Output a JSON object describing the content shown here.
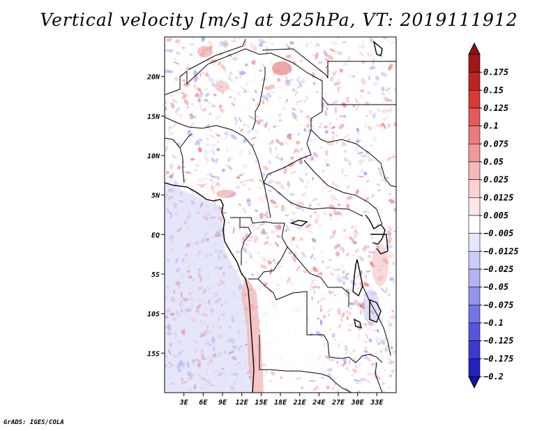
{
  "title": "Vertical velocity [m/s] at 925hPa, VT: 2019111912",
  "credit": "GrADS: IGES/COLA",
  "map": {
    "lon_range": [
      0,
      36
    ],
    "lat_range": [
      -20,
      25
    ],
    "lat_ticks": [
      {
        "value": 20,
        "label": "20N"
      },
      {
        "value": 15,
        "label": "15N"
      },
      {
        "value": 10,
        "label": "10N"
      },
      {
        "value": 5,
        "label": "5N"
      },
      {
        "value": 0,
        "label": "EQ"
      },
      {
        "value": -5,
        "label": "5S"
      },
      {
        "value": -10,
        "label": "10S"
      },
      {
        "value": -15,
        "label": "15S"
      }
    ],
    "lon_ticks": [
      {
        "value": 3,
        "label": "3E"
      },
      {
        "value": 6,
        "label": "6E"
      },
      {
        "value": 9,
        "label": "9E"
      },
      {
        "value": 12,
        "label": "12E"
      },
      {
        "value": 15,
        "label": "15E"
      },
      {
        "value": 18,
        "label": "18E"
      },
      {
        "value": 21,
        "label": "21E"
      },
      {
        "value": 24,
        "label": "24E"
      },
      {
        "value": 27,
        "label": "27E"
      },
      {
        "value": 30,
        "label": "30E"
      },
      {
        "value": 33,
        "label": "33E"
      }
    ]
  },
  "colorbar": {
    "levels": [
      {
        "label": "0.175",
        "color": "#a01818"
      },
      {
        "label": "0.15",
        "color": "#be2222"
      },
      {
        "label": "0.125",
        "color": "#d83838"
      },
      {
        "label": "0.1",
        "color": "#e45a5a"
      },
      {
        "label": "0.075",
        "color": "#ec7a7a"
      },
      {
        "label": "0.05",
        "color": "#f29898"
      },
      {
        "label": "0.025",
        "color": "#f7b8b8"
      },
      {
        "label": "0.0125",
        "color": "#fbd2d2"
      },
      {
        "label": "0.005",
        "color": "#fde8e8"
      },
      {
        "label": "−0.005",
        "color": "#ffffff"
      },
      {
        "label": "−0.0125",
        "color": "#e6e6fc"
      },
      {
        "label": "−0.025",
        "color": "#ccccf8"
      },
      {
        "label": "−0.05",
        "color": "#b2b2f4"
      },
      {
        "label": "−0.075",
        "color": "#9494ee"
      },
      {
        "label": "−0.1",
        "color": "#7474e6"
      },
      {
        "label": "−0.125",
        "color": "#5656dc"
      },
      {
        "label": "−0.175",
        "color": "#3a3ad0"
      },
      {
        "label": "−0.2",
        "color": "#2222c0"
      }
    ],
    "top_color": "#8a1414",
    "bottom_color": "#1414a8"
  }
}
